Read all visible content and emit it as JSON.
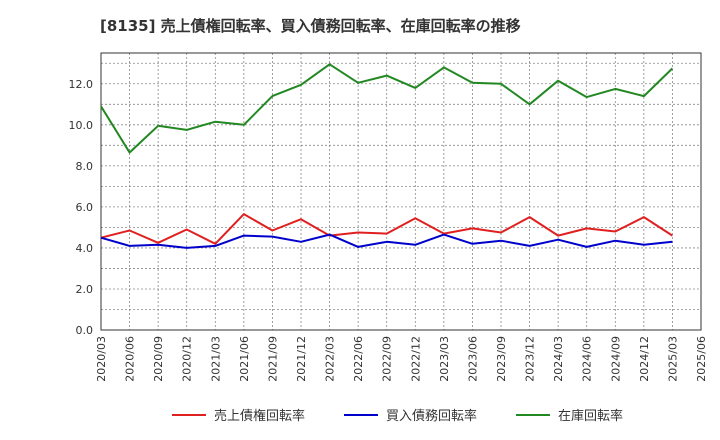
{
  "chart_data": {
    "type": "line",
    "title": "[8135]  売上債権回転率、買入債務回転率、在庫回転率の推移",
    "xlabel": "",
    "ylabel": "",
    "ylim": [
      0,
      13.5
    ],
    "yticks": [
      "0.0",
      "2.0",
      "4.0",
      "6.0",
      "8.0",
      "10.0",
      "12.0"
    ],
    "x": [
      "2020/03",
      "2020/06",
      "2020/09",
      "2020/12",
      "2021/03",
      "2021/06",
      "2021/09",
      "2021/12",
      "2022/03",
      "2022/06",
      "2022/09",
      "2022/12",
      "2023/03",
      "2023/06",
      "2023/09",
      "2023/12",
      "2024/03",
      "2024/06",
      "2024/09",
      "2024/12",
      "2025/03",
      "2025/06"
    ],
    "grid": true,
    "legend_position": "bottom",
    "series": [
      {
        "name": "売上債権回転率",
        "color": "#e02020",
        "values": [
          4.5,
          4.85,
          4.25,
          4.9,
          4.2,
          5.65,
          4.85,
          5.4,
          4.6,
          4.75,
          4.7,
          5.45,
          4.7,
          4.95,
          4.75,
          5.5,
          4.6,
          4.95,
          4.8,
          5.5,
          4.6,
          null
        ]
      },
      {
        "name": "買入債務回転率",
        "color": "#0000cc",
        "values": [
          4.5,
          4.1,
          4.15,
          4.0,
          4.1,
          4.6,
          4.55,
          4.3,
          4.65,
          4.05,
          4.3,
          4.15,
          4.65,
          4.2,
          4.35,
          4.1,
          4.4,
          4.05,
          4.35,
          4.15,
          4.3,
          null
        ]
      },
      {
        "name": "在庫回転率",
        "color": "#228822",
        "values": [
          10.9,
          8.65,
          9.95,
          9.75,
          10.15,
          10.0,
          11.4,
          11.95,
          12.95,
          12.05,
          12.4,
          11.8,
          12.8,
          12.05,
          12.0,
          11.0,
          12.15,
          11.35,
          11.75,
          11.4,
          12.75,
          null
        ]
      }
    ]
  }
}
